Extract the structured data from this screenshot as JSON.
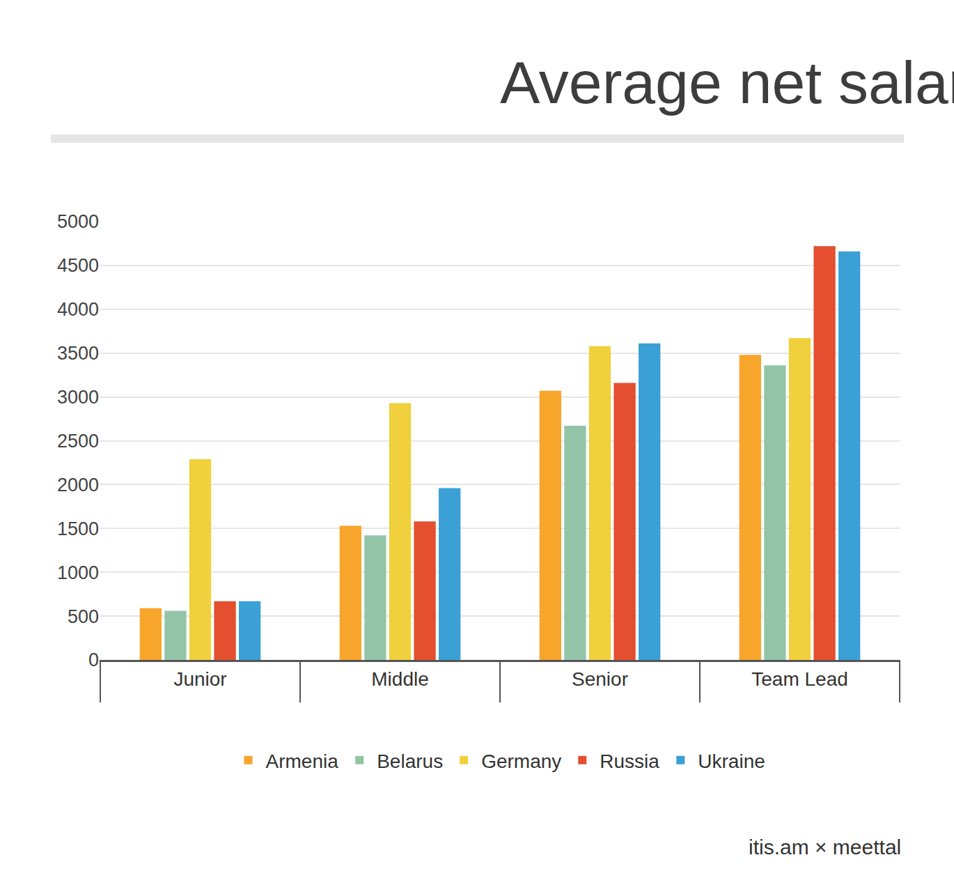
{
  "chart_data": {
    "type": "bar",
    "title": "Average net salaries",
    "categories": [
      "Junior",
      "Middle",
      "Senior",
      "Team Lead"
    ],
    "series": [
      {
        "name": "Armenia",
        "color": "#f7a52b",
        "values": [
          590,
          1530,
          3070,
          3480
        ]
      },
      {
        "name": "Belarus",
        "color": "#93c4a8",
        "values": [
          560,
          1420,
          2670,
          3360
        ]
      },
      {
        "name": "Germany",
        "color": "#f0d03c",
        "values": [
          2290,
          2930,
          3580,
          3670
        ]
      },
      {
        "name": "Russia",
        "color": "#e34f2f",
        "values": [
          670,
          1580,
          3160,
          4720
        ]
      },
      {
        "name": "Ukraine",
        "color": "#3aa0d5",
        "values": [
          670,
          1960,
          3610,
          4660
        ]
      }
    ],
    "ylim": [
      0,
      5000
    ],
    "yticks": [
      0,
      500,
      1000,
      1500,
      2000,
      2500,
      3000,
      3500,
      4000,
      4500,
      5000
    ],
    "grid": true,
    "legend": "bottom",
    "annotations": [
      "itis.am × meettal"
    ]
  }
}
